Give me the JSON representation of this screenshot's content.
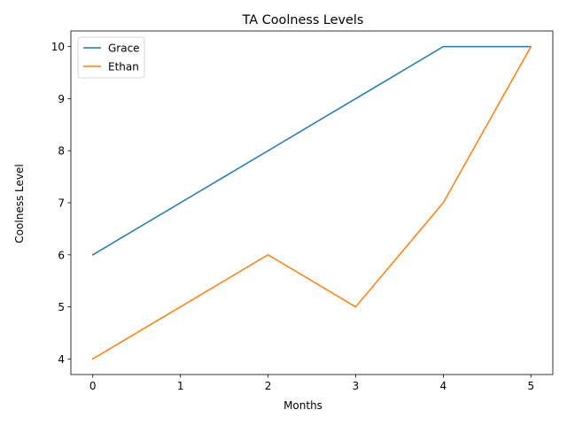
{
  "chart_data": {
    "type": "line",
    "title": "TA Coolness Levels",
    "xlabel": "Months",
    "ylabel": "Coolness Level",
    "x": [
      0,
      1,
      2,
      3,
      4,
      5
    ],
    "xlim": [
      -0.25,
      5.25
    ],
    "ylim": [
      3.7,
      10.3
    ],
    "xticks": [
      0,
      1,
      2,
      3,
      4,
      5
    ],
    "yticks": [
      4,
      5,
      6,
      7,
      8,
      9,
      10
    ],
    "grid": false,
    "legend_position": "upper left",
    "series": [
      {
        "name": "Grace",
        "color": "#1f77b4",
        "values": [
          6,
          7,
          8,
          9,
          10,
          10
        ]
      },
      {
        "name": "Ethan",
        "color": "#ff7f0e",
        "values": [
          4,
          5,
          6,
          5,
          7,
          10
        ]
      }
    ]
  }
}
